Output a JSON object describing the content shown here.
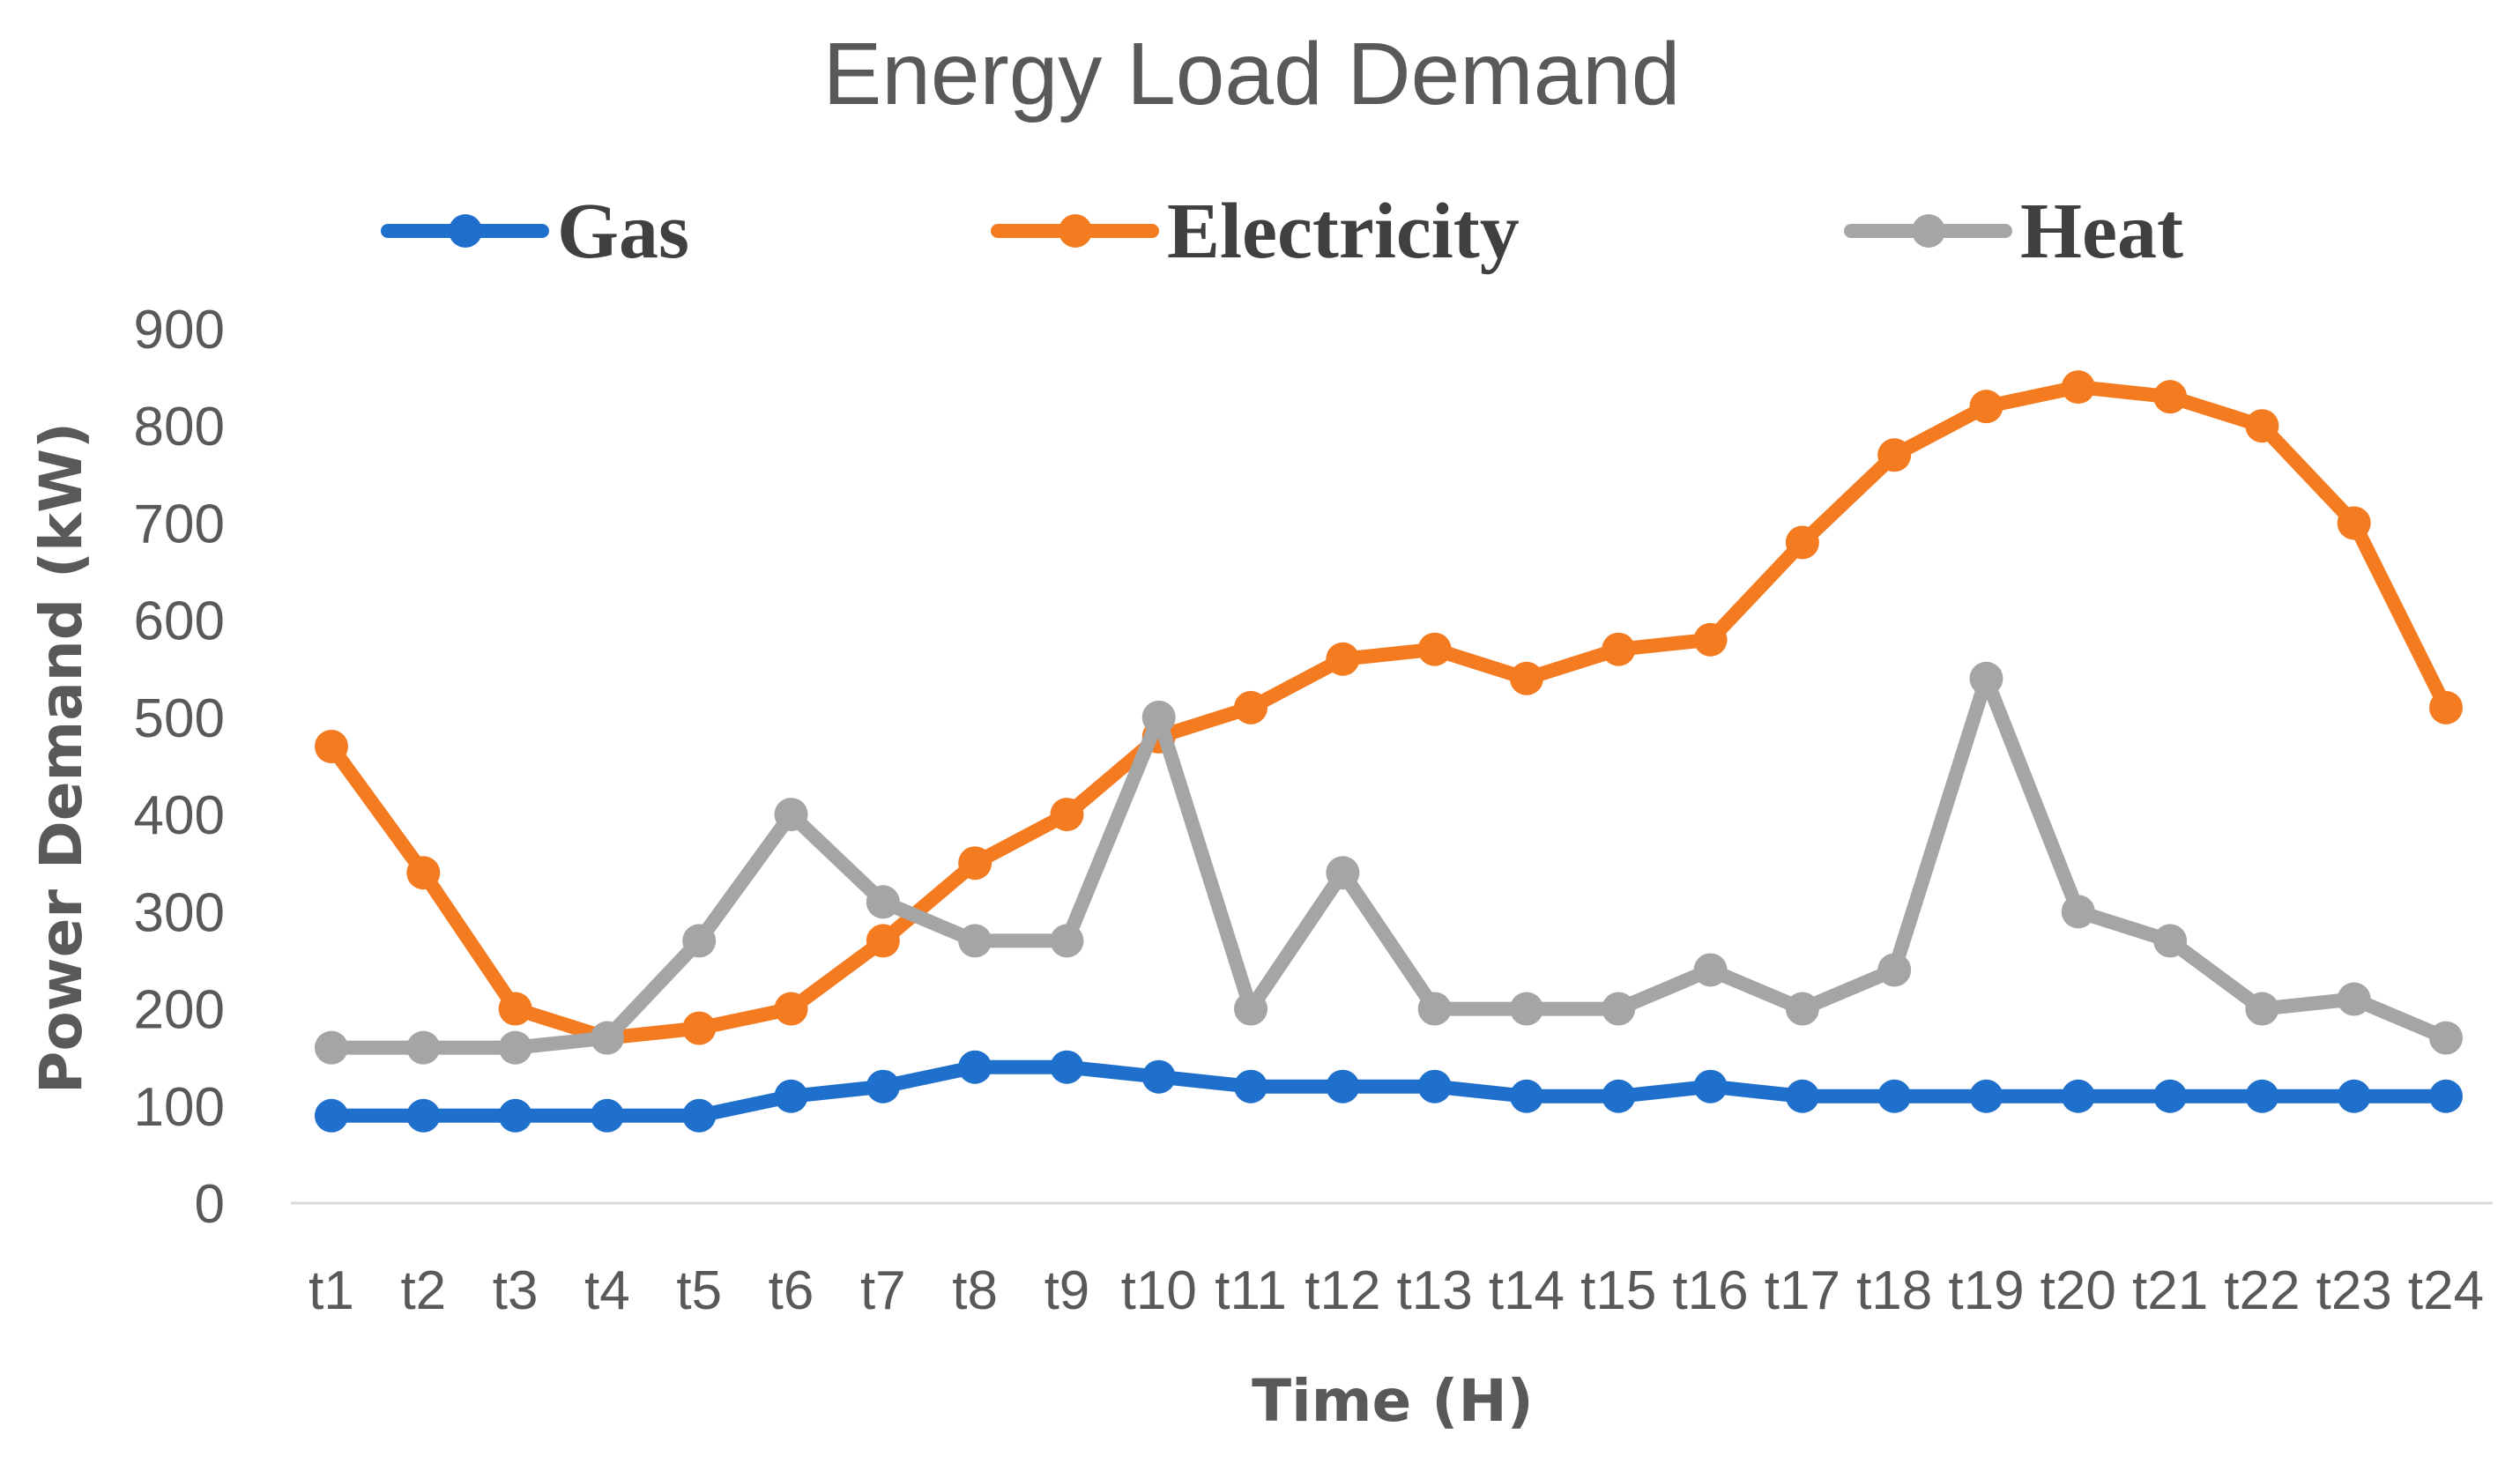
{
  "chart_data": {
    "type": "line",
    "title": "Energy Load Demand",
    "xlabel": "Time (H)",
    "ylabel": "Power Demand (kW)",
    "ylim": [
      0,
      900
    ],
    "yticks": [
      "0",
      "100",
      "200",
      "300",
      "400",
      "500",
      "600",
      "700",
      "800",
      "900"
    ],
    "grid": false,
    "legend_position": "top",
    "categories": [
      "t1",
      "t2",
      "t3",
      "t4",
      "t5",
      "t6",
      "t7",
      "t8",
      "t9",
      "t10",
      "t11",
      "t12",
      "t13",
      "t14",
      "t15",
      "t16",
      "t17",
      "t18",
      "t19",
      "t20",
      "t21",
      "t22",
      "t23",
      "t24"
    ],
    "series": [
      {
        "name": "Gas",
        "color": "#1f6fcc",
        "values": [
          90,
          90,
          90,
          90,
          90,
          110,
          120,
          140,
          140,
          130,
          120,
          120,
          120,
          110,
          110,
          120,
          110,
          110,
          110,
          110,
          110,
          110,
          110,
          110
        ]
      },
      {
        "name": "Electricity",
        "color": "#f47b20",
        "values": [
          470,
          340,
          200,
          170,
          180,
          200,
          270,
          350,
          400,
          480,
          510,
          560,
          570,
          540,
          570,
          580,
          680,
          770,
          820,
          840,
          830,
          800,
          700,
          510
        ]
      },
      {
        "name": "Heat",
        "color": "#a5a5a5",
        "values": [
          160,
          160,
          160,
          170,
          270,
          400,
          310,
          270,
          270,
          500,
          200,
          340,
          200,
          200,
          200,
          240,
          200,
          240,
          540,
          300,
          270,
          200,
          210,
          170
        ]
      }
    ]
  }
}
